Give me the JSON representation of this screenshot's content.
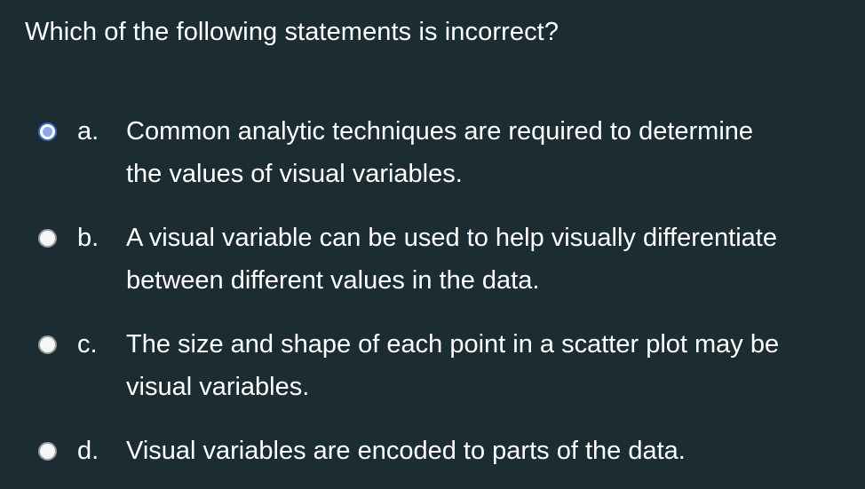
{
  "question": {
    "text": "Which of the following statements is incorrect?"
  },
  "options": [
    {
      "letter": "a.",
      "lines": [
        "Common analytic techniques are required to determine",
        "the values of visual variables."
      ],
      "selected": true
    },
    {
      "letter": "b.",
      "lines": [
        "A visual variable can be used to help visually differentiate",
        "between different values in the data."
      ],
      "selected": false
    },
    {
      "letter": "c.",
      "lines": [
        "The size and shape of each point in a scatter plot may be",
        "visual variables."
      ],
      "selected": false
    },
    {
      "letter": "d.",
      "lines": [
        "Visual variables are encoded to parts of the data."
      ],
      "selected": false
    }
  ],
  "colors": {
    "background": "#1b2d33",
    "text": "#ffffff",
    "radio_selected_fill": "#8fa7e8",
    "radio_selected_border": "#3b6fc9",
    "radio_border": "#9b9b9b"
  }
}
